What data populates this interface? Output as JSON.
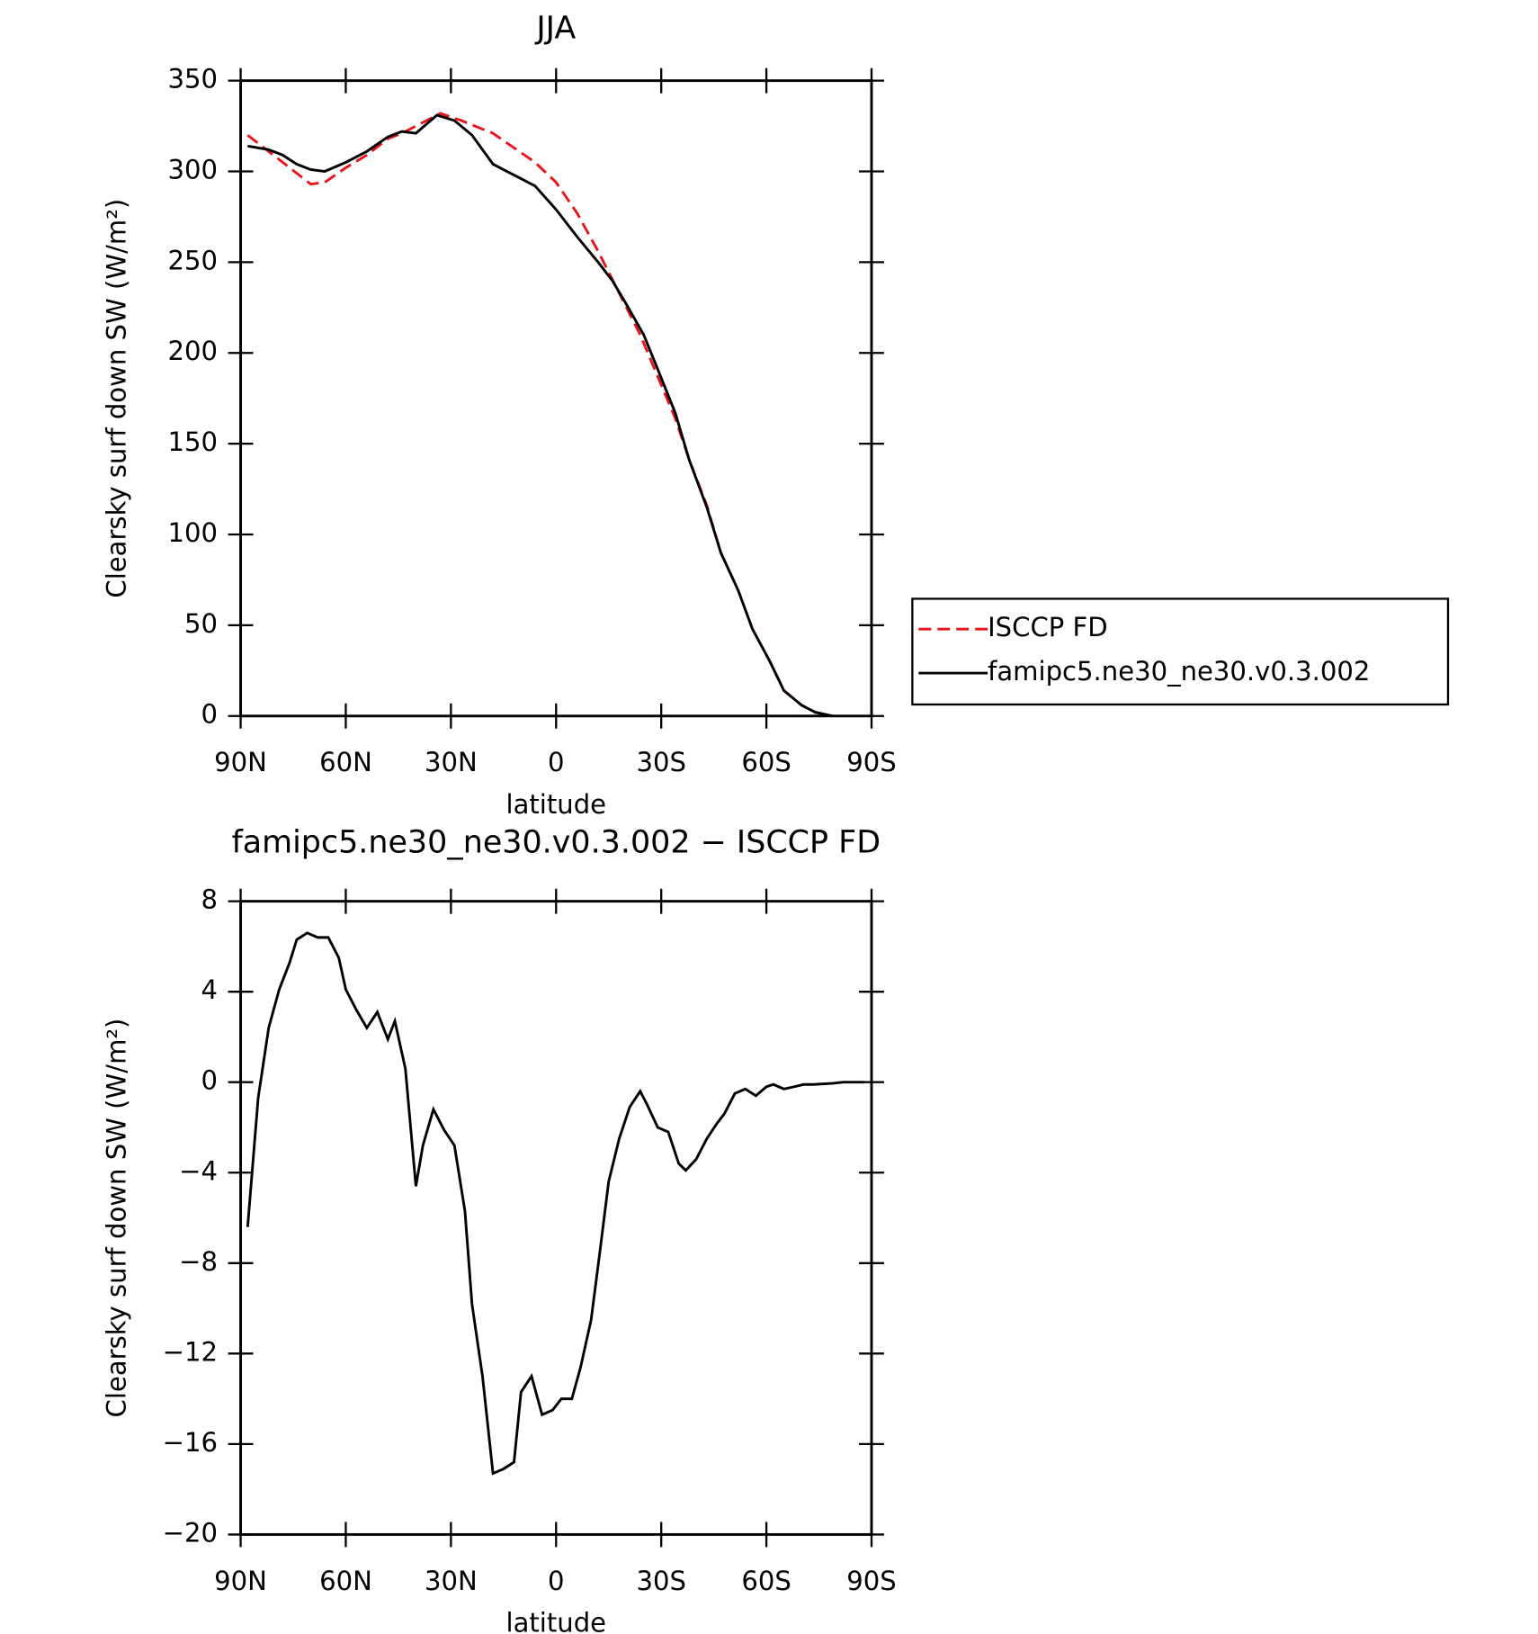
{
  "chart_data": [
    {
      "type": "line",
      "title": "JJA",
      "xlabel": "latitude",
      "ylabel": "Clearsky surf down SW (W/m²)",
      "xlim": [
        90,
        -90
      ],
      "xticks": [
        {
          "value": 90,
          "label": "90N"
        },
        {
          "value": 60,
          "label": "60N"
        },
        {
          "value": 30,
          "label": "30N"
        },
        0,
        {
          "value": -30,
          "label": "30S"
        },
        {
          "value": -60,
          "label": "60S"
        },
        {
          "value": -90,
          "label": "90S"
        }
      ],
      "ylim": [
        0,
        350
      ],
      "yticks": [
        0,
        50,
        100,
        150,
        200,
        250,
        300,
        350
      ],
      "legend": "right",
      "series": [
        {
          "name": "ISCCP FD",
          "color": "#e8141b",
          "style": "dashed",
          "x": [
            88,
            82,
            74,
            70,
            66,
            60,
            54,
            48,
            44,
            39,
            33,
            27,
            18,
            12,
            6,
            0,
            -6,
            -12,
            -18,
            -24,
            -29,
            -34,
            -38,
            -43,
            -47,
            -52,
            -56,
            -61,
            -65,
            -70,
            -74,
            -79
          ],
          "values": [
            320,
            311,
            299,
            293,
            294,
            302,
            309,
            318,
            321,
            326,
            332,
            328,
            321,
            313,
            305,
            294,
            277,
            256,
            233,
            210,
            187,
            164,
            141,
            116,
            90,
            69,
            48,
            30,
            14,
            6,
            2,
            0
          ]
        },
        {
          "name": "famipc5.ne30_ne30.v0.3.002",
          "color": "#000000",
          "style": "solid",
          "x": [
            88,
            82,
            78,
            74,
            70,
            66,
            60,
            54,
            48,
            44,
            40,
            34,
            29,
            24,
            18,
            13,
            10,
            6,
            0,
            -6,
            -12,
            -16,
            -20,
            -25,
            -29,
            -34,
            -38,
            -43,
            -47,
            -52,
            -56,
            -61,
            -65,
            -70,
            -74,
            -79
          ],
          "values": [
            314,
            312,
            309,
            304,
            301,
            300,
            305,
            311,
            319,
            322,
            321,
            331,
            328,
            320,
            304,
            299,
            296,
            292,
            279,
            264,
            250,
            240,
            227,
            210,
            191,
            167,
            141,
            115,
            90,
            69,
            48,
            30,
            14,
            6,
            2,
            0
          ]
        }
      ]
    },
    {
      "type": "line",
      "title": "famipc5.ne30_ne30.v0.3.002 − ISCCP FD",
      "xlabel": "latitude",
      "ylabel": "Clearsky surf down SW (W/m²)",
      "xlim": [
        90,
        -90
      ],
      "xticks": [
        {
          "value": 90,
          "label": "90N"
        },
        {
          "value": 60,
          "label": "60N"
        },
        {
          "value": 30,
          "label": "30N"
        },
        0,
        {
          "value": -30,
          "label": "30S"
        },
        {
          "value": -60,
          "label": "60S"
        },
        {
          "value": -90,
          "label": "90S"
        }
      ],
      "ylim": [
        -20,
        8
      ],
      "yticks": [
        {
          "value": -20,
          "label": "−20"
        },
        {
          "value": -16,
          "label": "−16"
        },
        {
          "value": -12,
          "label": "−12"
        },
        {
          "value": -8,
          "label": "−8"
        },
        {
          "value": -4,
          "label": "−4"
        },
        0,
        4,
        8
      ],
      "series": [
        {
          "color": "#000000",
          "style": "solid",
          "x": [
            88,
            85,
            82,
            79,
            76,
            74,
            71,
            68,
            65,
            62,
            60,
            57,
            54,
            51,
            48,
            46,
            43,
            40,
            38,
            35,
            32,
            29,
            26,
            24,
            21,
            18,
            15,
            12,
            10,
            7,
            4,
            1,
            -1.5,
            -4.5,
            -7,
            -10,
            -12.5,
            -15,
            -18,
            -21,
            -24,
            -26,
            -29,
            -32,
            -35,
            -37,
            -40,
            -43,
            -46,
            -48,
            -51,
            -54,
            -57,
            -60,
            -62,
            -65,
            -68,
            -70.6,
            -73.5,
            -79,
            -82,
            -88
          ],
          "values": [
            -6.4,
            -0.7,
            2.4,
            4.1,
            5.3,
            6.3,
            6.6,
            6.4,
            6.4,
            5.5,
            4.1,
            3.2,
            2.4,
            3.1,
            1.9,
            2.7,
            0.6,
            -4.6,
            -2.8,
            -1.2,
            -2.1,
            -2.8,
            -5.7,
            -9.8,
            -13.0,
            -17.3,
            -17.1,
            -16.8,
            -13.7,
            -13.0,
            -14.7,
            -14.5,
            -14.0,
            -14.0,
            -12.6,
            -10.5,
            -7.5,
            -4.4,
            -2.5,
            -1.1,
            -0.4,
            -1.0,
            -2.0,
            -2.2,
            -3.6,
            -3.9,
            -3.4,
            -2.5,
            -1.8,
            -1.4,
            -0.5,
            -0.3,
            -0.6,
            -0.2,
            -0.1,
            -0.3,
            -0.2,
            -0.1,
            -0.1,
            -0.05,
            0,
            0
          ]
        }
      ]
    }
  ]
}
